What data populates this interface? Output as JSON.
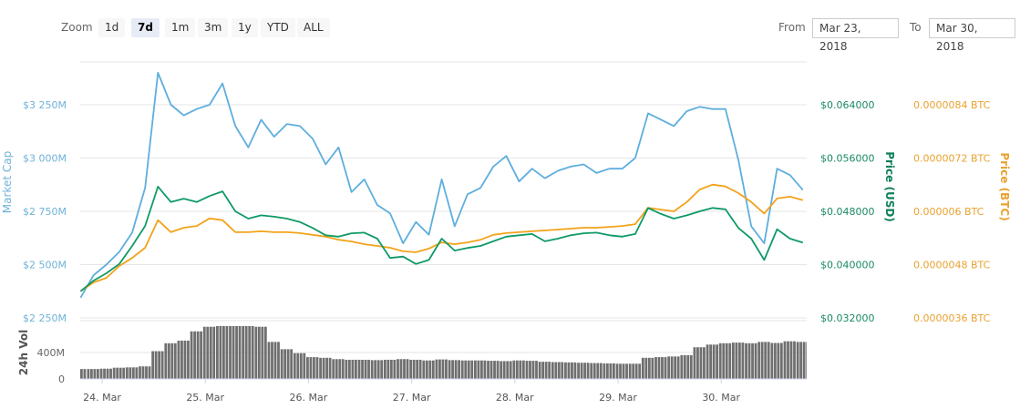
{
  "toolbar": {
    "zoom_label": "Zoom",
    "zoom_buttons": [
      "1d",
      "7d",
      "1m",
      "3m",
      "1y",
      "YTD",
      "ALL"
    ],
    "active_zoom": "7d",
    "from_label": "From",
    "from_value": "Mar 23, 2018",
    "to_label": "To",
    "to_value": "Mar 30, 2018"
  },
  "chart_data": {
    "type": "line",
    "grid": true,
    "colors": {
      "market_cap": "#5eaedd",
      "price_usd": "#0f9a66",
      "price_btc": "#f2a31a",
      "volume": "#6f6f6f"
    },
    "x_tick_labels": [
      "24. Mar",
      "25. Mar",
      "26. Mar",
      "27. Mar",
      "28. Mar",
      "29. Mar",
      "30. Mar"
    ],
    "axes": {
      "market_cap": {
        "label": "Market Cap",
        "ticks": [
          "$2 250M",
          "$2 500M",
          "$2 750M",
          "$3 000M",
          "$3 250M"
        ],
        "range": [
          2250,
          3250
        ]
      },
      "price_usd": {
        "label": "Price (USD)",
        "ticks": [
          "$0.032000",
          "$0.040000",
          "$0.048000",
          "$0.056000",
          "$0.064000"
        ],
        "range": [
          0.032,
          0.064
        ]
      },
      "price_btc": {
        "label": "Price (BTC)",
        "ticks": [
          "0.0000036 BTC",
          "0.0000048 BTC",
          "0.000006 BTC",
          "0.0000072 BTC",
          "0.0000084 BTC"
        ],
        "range": [
          3.6e-06,
          8.4e-06
        ]
      },
      "volume": {
        "label": "24h Vol",
        "ticks": [
          "0",
          "400M"
        ],
        "range": [
          0,
          800
        ]
      }
    },
    "x": [
      "2018-03-23T19:00",
      "2018-03-23T22:00",
      "2018-03-24T01:00",
      "2018-03-24T04:00",
      "2018-03-24T07:00",
      "2018-03-24T10:00",
      "2018-03-24T13:00",
      "2018-03-24T16:00",
      "2018-03-24T19:00",
      "2018-03-24T22:00",
      "2018-03-25T01:00",
      "2018-03-25T04:00",
      "2018-03-25T07:00",
      "2018-03-25T10:00",
      "2018-03-25T13:00",
      "2018-03-25T16:00",
      "2018-03-25T19:00",
      "2018-03-25T22:00",
      "2018-03-26T01:00",
      "2018-03-26T04:00",
      "2018-03-26T07:00",
      "2018-03-26T10:00",
      "2018-03-26T13:00",
      "2018-03-26T16:00",
      "2018-03-26T19:00",
      "2018-03-26T22:00",
      "2018-03-27T01:00",
      "2018-03-27T04:00",
      "2018-03-27T07:00",
      "2018-03-27T10:00",
      "2018-03-27T13:00",
      "2018-03-27T16:00",
      "2018-03-27T19:00",
      "2018-03-27T22:00",
      "2018-03-28T01:00",
      "2018-03-28T04:00",
      "2018-03-28T07:00",
      "2018-03-28T10:00",
      "2018-03-28T13:00",
      "2018-03-28T16:00",
      "2018-03-28T19:00",
      "2018-03-28T22:00",
      "2018-03-29T01:00",
      "2018-03-29T04:00",
      "2018-03-29T07:00",
      "2018-03-29T10:00",
      "2018-03-29T13:00",
      "2018-03-29T16:00",
      "2018-03-29T19:00",
      "2018-03-29T22:00",
      "2018-03-30T01:00",
      "2018-03-30T04:00",
      "2018-03-30T07:00",
      "2018-03-30T10:00",
      "2018-03-30T13:00",
      "2018-03-30T16:00",
      "2018-03-30T19:00"
    ],
    "series": [
      {
        "key": "market_cap",
        "values": [
          2345,
          2450,
          2500,
          2560,
          2650,
          2860,
          3400,
          3250,
          3200,
          3230,
          3250,
          3350,
          3150,
          3050,
          3180,
          3100,
          3160,
          3150,
          3090,
          2970,
          3050,
          2840,
          2900,
          2780,
          2740,
          2600,
          2700,
          2640,
          2900,
          2680,
          2830,
          2860,
          2960,
          3010,
          2890,
          2950,
          2905,
          2940,
          2960,
          2970,
          2930,
          2950,
          2950,
          3000,
          3210,
          3180,
          3150,
          3220,
          3240,
          3230,
          3230,
          2990,
          2680,
          2600,
          2950,
          2920,
          2850
        ]
      },
      {
        "key": "price_usd",
        "values": [
          0.036,
          0.0376,
          0.0387,
          0.0401,
          0.0428,
          0.0458,
          0.0517,
          0.0494,
          0.0499,
          0.0494,
          0.0503,
          0.051,
          0.048,
          0.0469,
          0.0474,
          0.0472,
          0.0469,
          0.0464,
          0.0455,
          0.0444,
          0.0442,
          0.0447,
          0.0448,
          0.0439,
          0.041,
          0.0412,
          0.0401,
          0.0407,
          0.0439,
          0.0421,
          0.0425,
          0.0428,
          0.0435,
          0.0442,
          0.0444,
          0.0446,
          0.0435,
          0.0439,
          0.0444,
          0.0447,
          0.0448,
          0.0444,
          0.0442,
          0.0446,
          0.0485,
          0.0476,
          0.0469,
          0.0474,
          0.048,
          0.0485,
          0.0483,
          0.0455,
          0.0439,
          0.0407,
          0.0453,
          0.0439,
          0.0433
        ]
      },
      {
        "key": "price_btc",
        "values": [
          4.2e-06,
          4.4e-06,
          4.5e-06,
          4.77e-06,
          4.95e-06,
          5.18e-06,
          5.8e-06,
          5.53e-06,
          5.63e-06,
          5.67e-06,
          5.84e-06,
          5.8e-06,
          5.53e-06,
          5.53e-06,
          5.55e-06,
          5.53e-06,
          5.53e-06,
          5.51e-06,
          5.47e-06,
          5.43e-06,
          5.36e-06,
          5.32e-06,
          5.26e-06,
          5.22e-06,
          5.18e-06,
          5.1e-06,
          5.08e-06,
          5.16e-06,
          5.3e-06,
          5.26e-06,
          5.3e-06,
          5.36e-06,
          5.47e-06,
          5.51e-06,
          5.53e-06,
          5.55e-06,
          5.57e-06,
          5.59e-06,
          5.61e-06,
          5.63e-06,
          5.63e-06,
          5.65e-06,
          5.67e-06,
          5.71e-06,
          6.08e-06,
          6.04e-06,
          6e-06,
          6.21e-06,
          6.49e-06,
          6.6e-06,
          6.56e-06,
          6.41e-06,
          6.21e-06,
          5.95e-06,
          6.29e-06,
          6.33e-06,
          6.25e-06
        ]
      },
      {
        "key": "volume",
        "values": [
          150,
          150,
          155,
          170,
          175,
          190,
          420,
          540,
          580,
          720,
          790,
          800,
          800,
          800,
          790,
          560,
          450,
          390,
          330,
          320,
          300,
          290,
          290,
          285,
          290,
          300,
          290,
          280,
          295,
          285,
          280,
          280,
          275,
          270,
          280,
          275,
          260,
          255,
          250,
          245,
          240,
          235,
          230,
          230,
          320,
          330,
          340,
          360,
          480,
          520,
          540,
          550,
          540,
          560,
          545,
          570,
          560
        ]
      }
    ]
  }
}
